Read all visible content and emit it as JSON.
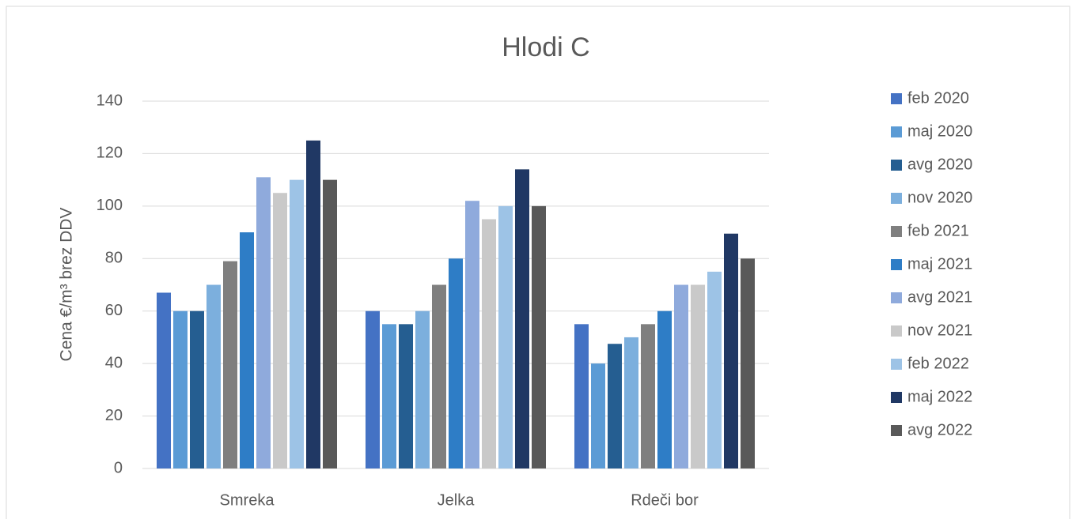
{
  "chart_data": {
    "type": "bar",
    "title": "Hlodi C",
    "y_label": "Cena €/m³ brez DDV",
    "categories": [
      "Smreka",
      "Jelka",
      "Rdeči bor"
    ],
    "series": [
      {
        "name": "feb 2020",
        "color": "#4472c4",
        "values": [
          67,
          60,
          55
        ]
      },
      {
        "name": "maj 2020",
        "color": "#5b9bd5",
        "values": [
          60,
          55,
          40
        ]
      },
      {
        "name": "avg 2020",
        "color": "#255e91",
        "values": [
          60,
          55,
          47.5
        ]
      },
      {
        "name": "nov 2020",
        "color": "#7cafdd",
        "values": [
          70,
          60,
          50
        ]
      },
      {
        "name": "feb 2021",
        "color": "#7f7f7f",
        "values": [
          79,
          70,
          55
        ]
      },
      {
        "name": "maj 2021",
        "color": "#2e7dc6",
        "values": [
          90,
          80,
          60
        ]
      },
      {
        "name": "avg 2021",
        "color": "#8faadc",
        "values": [
          111,
          102,
          70
        ]
      },
      {
        "name": "nov 2021",
        "color": "#c9c9c9",
        "values": [
          105,
          95,
          70
        ]
      },
      {
        "name": "feb 2022",
        "color": "#9dc3e6",
        "values": [
          110,
          100,
          75
        ]
      },
      {
        "name": "maj 2022",
        "color": "#203864",
        "values": [
          125,
          114,
          89.5
        ]
      },
      {
        "name": "avg 2022",
        "color": "#595959",
        "values": [
          110,
          100,
          80
        ]
      }
    ],
    "ylim": [
      0,
      140
    ],
    "yticks": [
      0,
      20,
      40,
      60,
      80,
      100,
      120,
      140
    ],
    "grid": true,
    "legend": "right"
  }
}
